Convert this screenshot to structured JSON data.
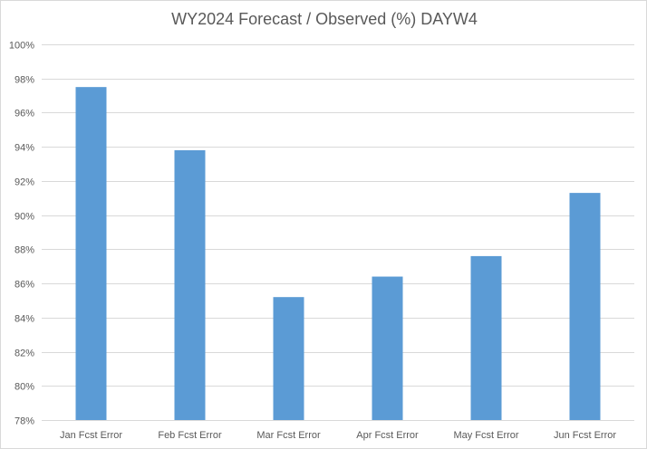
{
  "chart_data": {
    "type": "bar",
    "title": "WY2024 Forecast / Observed (%) DAYW4",
    "xlabel": "",
    "ylabel": "",
    "categories": [
      "Jan Fcst Error",
      "Feb Fcst Error",
      "Mar Fcst Error",
      "Apr Fcst Error",
      "May Fcst Error",
      "Jun Fcst Error"
    ],
    "values": [
      97.5,
      93.8,
      85.2,
      86.4,
      87.6,
      91.3
    ],
    "ylim": [
      78,
      100
    ],
    "yticks": [
      78,
      80,
      82,
      84,
      86,
      88,
      90,
      92,
      94,
      96,
      98,
      100
    ],
    "ytick_labels": [
      "78%",
      "80%",
      "82%",
      "84%",
      "86%",
      "88%",
      "90%",
      "92%",
      "94%",
      "96%",
      "98%",
      "100%"
    ],
    "grid": true,
    "legend": "none",
    "bar_color": "#5b9bd5",
    "grid_color": "#d9d9d9"
  }
}
